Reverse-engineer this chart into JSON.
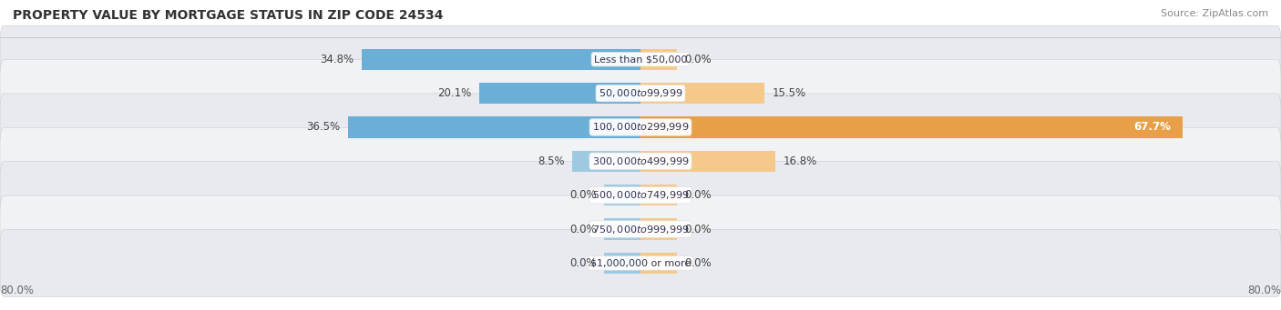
{
  "title": "PROPERTY VALUE BY MORTGAGE STATUS IN ZIP CODE 24534",
  "source": "Source: ZipAtlas.com",
  "categories": [
    "Less than $50,000",
    "$50,000 to $99,999",
    "$100,000 to $299,999",
    "$300,000 to $499,999",
    "$500,000 to $749,999",
    "$750,000 to $999,999",
    "$1,000,000 or more"
  ],
  "without_mortgage": [
    34.8,
    20.1,
    36.5,
    8.5,
    0.0,
    0.0,
    0.0
  ],
  "with_mortgage": [
    0.0,
    15.5,
    67.7,
    16.8,
    0.0,
    0.0,
    0.0
  ],
  "color_without": "#6baed6",
  "color_without_light": "#9ecae1",
  "color_with": "#e8a048",
  "color_with_light": "#f5c98a",
  "axis_min": -80.0,
  "axis_max": 80.0,
  "axis_label_left": "80.0%",
  "axis_label_right": "80.0%",
  "bar_height": 0.62,
  "stub_size": 4.5,
  "title_fontsize": 10,
  "source_fontsize": 8,
  "label_fontsize": 8.5,
  "category_fontsize": 8
}
